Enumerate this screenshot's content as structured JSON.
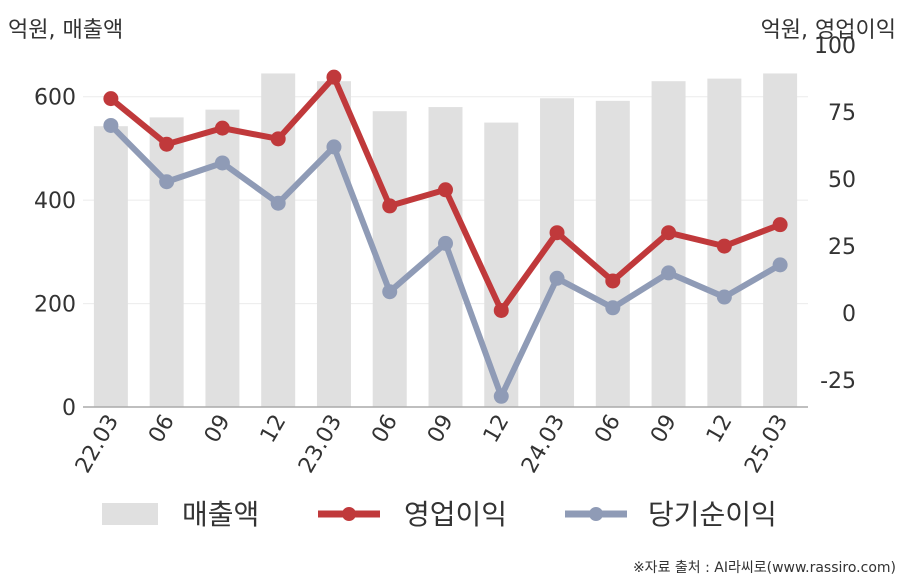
{
  "chart_data": {
    "type": "bar+line",
    "left_unit": "억원, 매출액",
    "right_unit": "억원, 영업이익",
    "categories": [
      "22.03",
      "06",
      "09",
      "12",
      "23.03",
      "06",
      "09",
      "12",
      "24.03",
      "06",
      "09",
      "12",
      "25.03"
    ],
    "y_left": {
      "ticks": [
        "0",
        "200",
        "400",
        "600"
      ],
      "range": [
        0,
        700
      ]
    },
    "y_right": {
      "ticks": [
        "-25",
        "0",
        "25",
        "50",
        "75",
        "100"
      ],
      "range": [
        -35,
        100
      ]
    },
    "series": [
      {
        "name": "매출액",
        "type": "bar",
        "axis": "left",
        "color": "#e0e0e0",
        "values": [
          543,
          560,
          575,
          645,
          630,
          572,
          580,
          550,
          597,
          592,
          630,
          635,
          645
        ]
      },
      {
        "name": "영업이익",
        "type": "line",
        "axis": "right",
        "color": "#c0393b",
        "values": [
          80,
          63,
          69,
          65,
          88,
          40,
          46,
          1,
          30,
          12,
          30,
          25,
          33
        ]
      },
      {
        "name": "당기순이익",
        "type": "line",
        "axis": "right",
        "color": "#8f9bb6",
        "values": [
          70,
          49,
          56,
          41,
          62,
          8,
          26,
          -31,
          13,
          2,
          15,
          6,
          18
        ]
      }
    ],
    "grid": true,
    "legend": "bottom"
  },
  "source_note": "※자료 출처 : AI라씨로(www.rassiro.com)"
}
